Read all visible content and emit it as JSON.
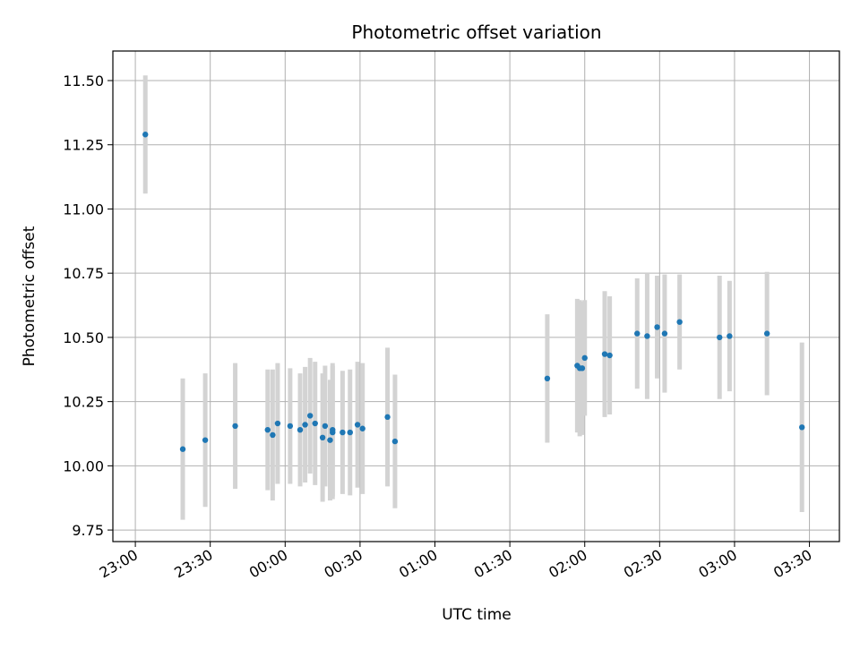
{
  "chart_data": {
    "type": "scatter",
    "title": "Photometric offset variation",
    "xlabel": "UTC time",
    "ylabel": "Photometric offset",
    "x_tick_labels": [
      "23:00",
      "23:30",
      "00:00",
      "00:30",
      "01:00",
      "01:30",
      "02:00",
      "02:30",
      "03:00",
      "03:30"
    ],
    "x_tick_values": [
      "23:00",
      "23:30",
      "24:00",
      "24:30",
      "25:00",
      "25:30",
      "26:00",
      "26:30",
      "27:00",
      "27:30"
    ],
    "xlim": [
      "22:51",
      "27:42"
    ],
    "y_tick_labels": [
      "9.75",
      "10.00",
      "10.25",
      "10.50",
      "10.75",
      "11.00",
      "11.25",
      "11.50"
    ],
    "y_tick_values": [
      9.75,
      10.0,
      10.25,
      10.5,
      10.75,
      11.0,
      11.25,
      11.5
    ],
    "ylim": [
      9.705,
      11.615
    ],
    "grid": true,
    "marker_color": "#1f77b4",
    "errorbar_color": "#d3d3d3",
    "points": [
      {
        "t": "23:04",
        "y": 11.29,
        "err": 0.23
      },
      {
        "t": "23:19",
        "y": 10.065,
        "err": 0.275
      },
      {
        "t": "23:28",
        "y": 10.1,
        "err": 0.26
      },
      {
        "t": "23:40",
        "y": 10.155,
        "err": 0.245
      },
      {
        "t": "23:53",
        "y": 10.14,
        "err": 0.235
      },
      {
        "t": "23:55",
        "y": 10.12,
        "err": 0.255
      },
      {
        "t": "23:57",
        "y": 10.165,
        "err": 0.235
      },
      {
        "t": "24:02",
        "y": 10.155,
        "err": 0.225
      },
      {
        "t": "24:06",
        "y": 10.14,
        "err": 0.22
      },
      {
        "t": "24:08",
        "y": 10.16,
        "err": 0.225
      },
      {
        "t": "24:10",
        "y": 10.195,
        "err": 0.225
      },
      {
        "t": "24:12",
        "y": 10.165,
        "err": 0.24
      },
      {
        "t": "24:15",
        "y": 10.11,
        "err": 0.25
      },
      {
        "t": "24:16",
        "y": 10.155,
        "err": 0.235
      },
      {
        "t": "24:18",
        "y": 10.1,
        "err": 0.235
      },
      {
        "t": "24:19",
        "y": 10.13,
        "err": 0.26
      },
      {
        "t": "24:19",
        "y": 10.14,
        "err": 0.26
      },
      {
        "t": "24:23",
        "y": 10.13,
        "err": 0.24
      },
      {
        "t": "24:26",
        "y": 10.13,
        "err": 0.245
      },
      {
        "t": "24:29",
        "y": 10.16,
        "err": 0.245
      },
      {
        "t": "24:31",
        "y": 10.145,
        "err": 0.255
      },
      {
        "t": "24:41",
        "y": 10.19,
        "err": 0.27
      },
      {
        "t": "24:44",
        "y": 10.095,
        "err": 0.26
      },
      {
        "t": "25:45",
        "y": 10.34,
        "err": 0.25
      },
      {
        "t": "25:57",
        "y": 10.39,
        "err": 0.26
      },
      {
        "t": "25:58",
        "y": 10.38,
        "err": 0.265
      },
      {
        "t": "25:59",
        "y": 10.38,
        "err": 0.26
      },
      {
        "t": "26:00",
        "y": 10.42,
        "err": 0.225
      },
      {
        "t": "26:08",
        "y": 10.435,
        "err": 0.245
      },
      {
        "t": "26:10",
        "y": 10.43,
        "err": 0.23
      },
      {
        "t": "26:21",
        "y": 10.515,
        "err": 0.215
      },
      {
        "t": "26:25",
        "y": 10.505,
        "err": 0.245
      },
      {
        "t": "26:29",
        "y": 10.54,
        "err": 0.2
      },
      {
        "t": "26:32",
        "y": 10.515,
        "err": 0.23
      },
      {
        "t": "26:38",
        "y": 10.56,
        "err": 0.185
      },
      {
        "t": "26:54",
        "y": 10.5,
        "err": 0.24
      },
      {
        "t": "26:58",
        "y": 10.505,
        "err": 0.215
      },
      {
        "t": "27:13",
        "y": 10.515,
        "err": 0.24
      },
      {
        "t": "27:27",
        "y": 10.15,
        "err": 0.33
      }
    ]
  }
}
